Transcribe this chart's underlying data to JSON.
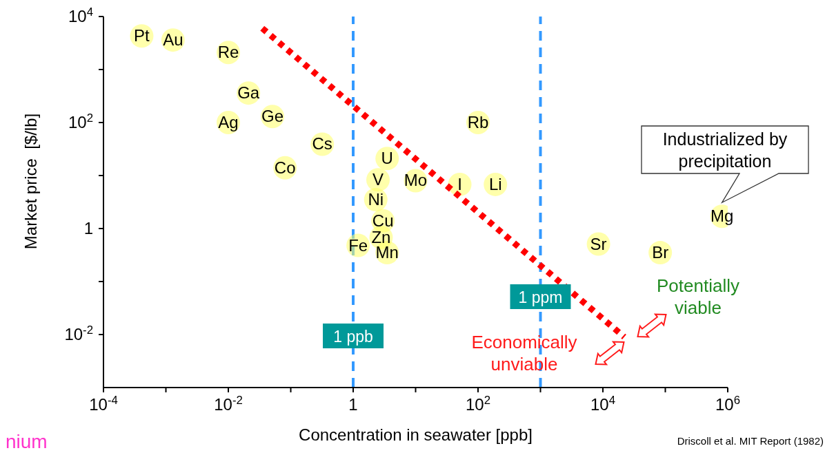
{
  "chart_data": {
    "type": "scatter",
    "xlabel": "Concentration in seawater [ppb]",
    "ylabel": "Market price  [$/lb]",
    "log": "xy",
    "xlim": [
      0.0001,
      1000000
    ],
    "ylim": [
      0.001,
      10000
    ],
    "xticks": [
      {
        "value": 0.0001,
        "label": "10$^{-4}$"
      },
      {
        "value": 0.001,
        "label": null
      },
      {
        "value": 0.01,
        "label": "10$^{-2}$"
      },
      {
        "value": 0.1,
        "label": null
      },
      1,
      {
        "value": 10,
        "label": null
      },
      {
        "value": 100,
        "label": "10$^{2}$"
      },
      {
        "value": 1000,
        "label": null
      },
      {
        "value": 10000,
        "label": "10$^{4}$"
      },
      {
        "value": 100000,
        "label": null
      },
      {
        "value": 1000000,
        "label": "10$^{6}$"
      }
    ],
    "yticks": [
      {
        "value": 0.01,
        "label": "10$^{-2}$"
      },
      {
        "value": 0.1,
        "label": null
      },
      1,
      {
        "value": 10,
        "label": null
      },
      {
        "value": 100,
        "label": "10$^{2}$"
      },
      {
        "value": 1000,
        "label": null
      },
      {
        "value": 10000,
        "label": "10$^{4}$"
      }
    ],
    "series": [
      {
        "type": "scatter",
        "color": "#ffff66",
        "x": [
          0.00041,
          0.0013,
          0.01,
          0.021,
          0.01,
          0.051,
          0.32,
          0.081,
          3.5,
          2.5,
          10,
          2.3,
          51,
          190,
          100,
          3.0,
          2.8,
          1.2,
          3.5,
          8500,
          83000,
          810000
        ],
        "values": [
          4300,
          3600,
          2100,
          360,
          100,
          130,
          39,
          14,
          21,
          8.3,
          8,
          3.5,
          6.8,
          6.8,
          100,
          1.4,
          0.68,
          0.48,
          0.35,
          0.51,
          0.35,
          1.7
        ],
        "value_labels": [
          "Pt",
          "Au",
          "Re",
          "Ga",
          "Ag",
          "Ge",
          "Cs",
          "Co",
          "U",
          "V",
          "Mo",
          "Ni",
          "I",
          "Li",
          "Rb",
          "Cu",
          "Zn",
          "Fe",
          "Mn",
          "Sr",
          "Br",
          "Mg"
        ]
      },
      {
        "type": "line",
        "color": "#ff0000",
        "line_style": "dotted",
        "x": [
          0.035,
          22000
        ],
        "values": [
          6000,
          0.009
        ]
      }
    ],
    "ref_lines": [
      {
        "axis": "x",
        "value": 1,
        "label": "1 ppb",
        "color": "#3399ff",
        "line_style": "dashed"
      },
      {
        "axis": "x",
        "value": 1000,
        "label": "1 ppm",
        "color": "#3399ff",
        "line_style": "dashed"
      }
    ],
    "annotations": [
      {
        "text": "Industrialized by precipitation",
        "x": 810000,
        "y": 1.7
      },
      "Potentially viable",
      "Economically unviable",
      "Driscoll et al. MIT Report (1982)",
      "nium"
    ]
  }
}
